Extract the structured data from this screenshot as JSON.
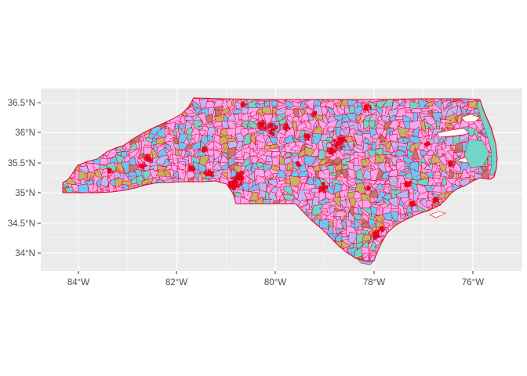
{
  "map": {
    "type": "choropleth",
    "region": "North Carolina",
    "panel_background": "#ebebeb",
    "grid_color": "#ffffff",
    "border_color": "#e8001c",
    "fill_palette": [
      "#f8a6f0",
      "#6fc4f7",
      "#bcb8f7",
      "#6fd6c8",
      "#c6b266",
      "#bf7a6b"
    ],
    "water_color": "#ffffff",
    "coast_accent": "#6fd6c8",
    "x_axis": {
      "tick_labels": [
        "84°W",
        "82°W",
        "80°W",
        "78°W",
        "76°W"
      ],
      "tick_values": [
        -84,
        -82,
        -80,
        -78,
        -76
      ],
      "range": [
        -84.8,
        -75.0
      ]
    },
    "y_axis": {
      "tick_labels": [
        "34°N",
        "34.5°N",
        "35°N",
        "35.5°N",
        "36°N",
        "36.5°N"
      ],
      "tick_values": [
        34,
        34.5,
        35,
        35.5,
        36,
        36.5
      ],
      "range": [
        33.7,
        36.7
      ]
    },
    "grid": true,
    "legend": "none"
  }
}
